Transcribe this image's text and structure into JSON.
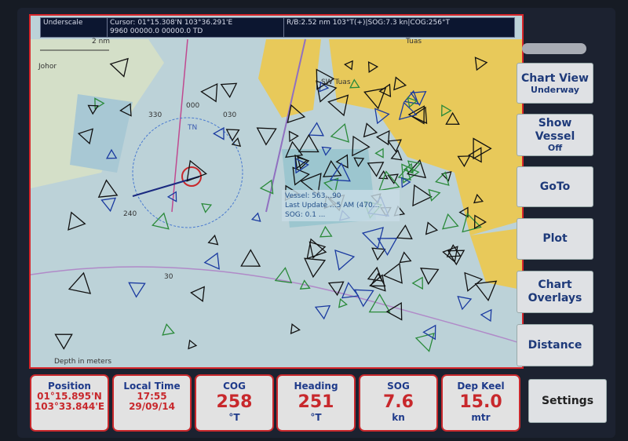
{
  "status_bar": {
    "scale": "Underscale",
    "cursor": "Cursor: 01°15.308'N 103°36.291'E",
    "cursor_line2": "9960  00000.0  00000.0  TD",
    "range_bearing": "R/B:2.52 nm 103°T(+)|SOG:7.3 kn|COG:256°T"
  },
  "map": {
    "scale_label": "2 nm",
    "labels": {
      "johor": "Johor",
      "tuas": "Tuas",
      "sw_tuas": "SW Tuas",
      "depth_note": "Depth in meters",
      "compass_n": "TN",
      "c000": "000",
      "c030": "030",
      "c330": "330",
      "c240": "240",
      "d30": "30"
    },
    "vessel_popup": {
      "line1": "Vessel: 563...90",
      "line2": "Last Update ...5 AM (470...",
      "line3": "SOG: 0.1 ..."
    },
    "colors": {
      "land": "#e8c95a",
      "water": "#bcd2d8",
      "shallow": "#9cc6cf",
      "border": "#d8262a"
    }
  },
  "right_menu": [
    {
      "label": "Chart View",
      "sub": "Underway"
    },
    {
      "label": "Show Vessel",
      "sub": "Off"
    },
    {
      "label": "GoTo"
    },
    {
      "label": "Plot"
    },
    {
      "label": "Chart Overlays"
    },
    {
      "label": "Distance"
    }
  ],
  "settings_label": "Settings",
  "panels": {
    "position": {
      "title": "Position",
      "lat": "01°15.895'N",
      "lon": "103°33.844'E"
    },
    "time": {
      "title": "Local Time",
      "time": "17:55",
      "date": "29/09/14"
    },
    "cog": {
      "title": "COG",
      "value": "258",
      "unit": "°T"
    },
    "heading": {
      "title": "Heading",
      "value": "251",
      "unit": "°T"
    },
    "sog": {
      "title": "SOG",
      "value": "7.6",
      "unit": "kn"
    },
    "depth": {
      "title": "Dep Keel",
      "value": "15.0",
      "unit": "mtr"
    }
  }
}
